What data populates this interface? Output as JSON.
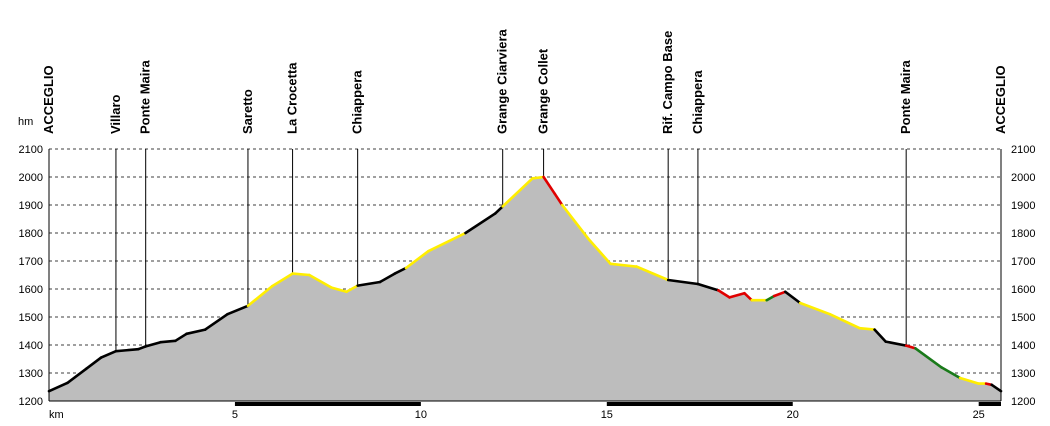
{
  "chart_data": {
    "type": "area",
    "title": "",
    "xlabel": "km",
    "ylabel": "hm",
    "xlim": [
      0,
      25.6
    ],
    "ylim": [
      1200,
      2100
    ],
    "grid": true,
    "x_ticks": [
      5,
      10,
      15,
      20,
      25
    ],
    "y_ticks": [
      1200,
      1300,
      1400,
      1500,
      1600,
      1700,
      1800,
      1900,
      2000,
      2100
    ],
    "colors": {
      "fill": "#bdbdbd",
      "black": "#000000",
      "yellow": "#ffee00",
      "red": "#e00000",
      "green": "#1a7a1a"
    },
    "waypoints": [
      {
        "name": "ACCEGLIO",
        "km": 0
      },
      {
        "name": "Villaro",
        "km": 1.8
      },
      {
        "name": "Ponte Maira",
        "km": 2.6
      },
      {
        "name": "Saretto",
        "km": 5.35
      },
      {
        "name": "La Crocetta",
        "km": 6.55
      },
      {
        "name": "Chiappera",
        "km": 8.3
      },
      {
        "name": "Grange Ciarviera",
        "km": 12.2
      },
      {
        "name": "Grange Collet",
        "km": 13.3
      },
      {
        "name": "Rif. Campo Base",
        "km": 16.65
      },
      {
        "name": "Chiappera",
        "km": 17.45
      },
      {
        "name": "Ponte Maira",
        "km": 23.05
      },
      {
        "name": "ACCEGLIO",
        "km": 25.6
      }
    ],
    "profile": [
      {
        "x": 0.0,
        "y": 1235,
        "c": "black"
      },
      {
        "x": 0.5,
        "y": 1265,
        "c": "black"
      },
      {
        "x": 1.0,
        "y": 1315,
        "c": "black"
      },
      {
        "x": 1.4,
        "y": 1355,
        "c": "black"
      },
      {
        "x": 1.8,
        "y": 1378,
        "c": "black"
      },
      {
        "x": 2.4,
        "y": 1385,
        "c": "black"
      },
      {
        "x": 2.6,
        "y": 1395,
        "c": "black"
      },
      {
        "x": 3.0,
        "y": 1410,
        "c": "black"
      },
      {
        "x": 3.4,
        "y": 1415,
        "c": "black"
      },
      {
        "x": 3.7,
        "y": 1440,
        "c": "black"
      },
      {
        "x": 4.2,
        "y": 1455,
        "c": "black"
      },
      {
        "x": 4.8,
        "y": 1510,
        "c": "black"
      },
      {
        "x": 5.35,
        "y": 1540,
        "c": "yellow"
      },
      {
        "x": 6.0,
        "y": 1610,
        "c": "yellow"
      },
      {
        "x": 6.55,
        "y": 1655,
        "c": "yellow"
      },
      {
        "x": 7.0,
        "y": 1650,
        "c": "yellow"
      },
      {
        "x": 7.6,
        "y": 1605,
        "c": "yellow"
      },
      {
        "x": 8.0,
        "y": 1590,
        "c": "yellow"
      },
      {
        "x": 8.3,
        "y": 1612,
        "c": "black"
      },
      {
        "x": 8.9,
        "y": 1625,
        "c": "black"
      },
      {
        "x": 9.3,
        "y": 1655,
        "c": "black"
      },
      {
        "x": 9.6,
        "y": 1675,
        "c": "yellow"
      },
      {
        "x": 10.2,
        "y": 1735,
        "c": "yellow"
      },
      {
        "x": 11.2,
        "y": 1800,
        "c": "black"
      },
      {
        "x": 12.0,
        "y": 1870,
        "c": "black"
      },
      {
        "x": 12.2,
        "y": 1895,
        "c": "yellow"
      },
      {
        "x": 13.0,
        "y": 1995,
        "c": "yellow"
      },
      {
        "x": 13.3,
        "y": 2000,
        "c": "red"
      },
      {
        "x": 13.6,
        "y": 1940,
        "c": "red"
      },
      {
        "x": 13.8,
        "y": 1900,
        "c": "yellow"
      },
      {
        "x": 14.5,
        "y": 1780,
        "c": "yellow"
      },
      {
        "x": 15.1,
        "y": 1690,
        "c": "yellow"
      },
      {
        "x": 15.8,
        "y": 1680,
        "c": "yellow"
      },
      {
        "x": 16.65,
        "y": 1632,
        "c": "black"
      },
      {
        "x": 17.45,
        "y": 1618,
        "c": "black"
      },
      {
        "x": 18.0,
        "y": 1595,
        "c": "red"
      },
      {
        "x": 18.3,
        "y": 1570,
        "c": "red"
      },
      {
        "x": 18.7,
        "y": 1585,
        "c": "red"
      },
      {
        "x": 18.9,
        "y": 1560,
        "c": "yellow"
      },
      {
        "x": 19.3,
        "y": 1560,
        "c": "green"
      },
      {
        "x": 19.5,
        "y": 1575,
        "c": "red"
      },
      {
        "x": 19.8,
        "y": 1590,
        "c": "black"
      },
      {
        "x": 20.2,
        "y": 1550,
        "c": "yellow"
      },
      {
        "x": 21.0,
        "y": 1510,
        "c": "yellow"
      },
      {
        "x": 21.8,
        "y": 1460,
        "c": "yellow"
      },
      {
        "x": 22.2,
        "y": 1455,
        "c": "black"
      },
      {
        "x": 22.5,
        "y": 1412,
        "c": "black"
      },
      {
        "x": 23.05,
        "y": 1398,
        "c": "red"
      },
      {
        "x": 23.3,
        "y": 1388,
        "c": "green"
      },
      {
        "x": 24.0,
        "y": 1320,
        "c": "green"
      },
      {
        "x": 24.5,
        "y": 1282,
        "c": "yellow"
      },
      {
        "x": 25.0,
        "y": 1262,
        "c": "yellow"
      },
      {
        "x": 25.2,
        "y": 1262,
        "c": "red"
      },
      {
        "x": 25.35,
        "y": 1258,
        "c": "black"
      },
      {
        "x": 25.6,
        "y": 1235,
        "c": "black"
      }
    ]
  }
}
